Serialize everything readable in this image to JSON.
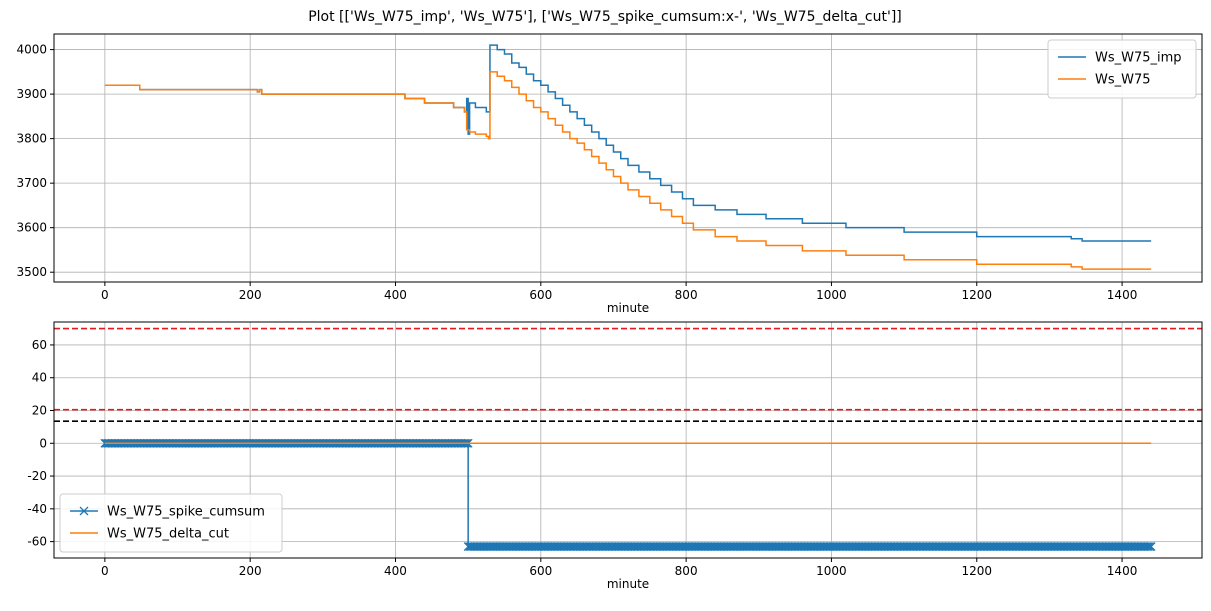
{
  "figure": {
    "title": "Plot [['Ws_W75_imp', 'Ws_W75'], ['Ws_W75_spike_cumsum:x-', 'Ws_W75_delta_cut']]"
  },
  "colors": {
    "blue": "#1f77b4",
    "orange": "#ff7f0e",
    "red": "#e41a1c",
    "black": "#000000",
    "grid": "#b0b0b0"
  },
  "chart_data": [
    {
      "type": "line",
      "xlabel": "minute",
      "ylabel": "",
      "xlim": [
        -70,
        1510
      ],
      "ylim": [
        3478,
        4035
      ],
      "xticks": [
        0,
        200,
        400,
        600,
        800,
        1000,
        1200,
        1400
      ],
      "yticks": [
        3500,
        3600,
        3700,
        3800,
        3900,
        4000
      ],
      "grid": true,
      "legend_position": "upper right",
      "series": [
        {
          "name": "Ws_W75_imp",
          "color": "blue",
          "style": "step",
          "points": [
            [
              0,
              3920
            ],
            [
              48,
              3910
            ],
            [
              205,
              3910
            ],
            [
              210,
              3905
            ],
            [
              213,
              3910
            ],
            [
              216,
              3900
            ],
            [
              410,
              3900
            ],
            [
              413,
              3890
            ],
            [
              440,
              3880
            ],
            [
              480,
              3870
            ],
            [
              495,
              3860
            ],
            [
              498,
              3890
            ],
            [
              500,
              3810
            ],
            [
              502,
              3880
            ],
            [
              510,
              3870
            ],
            [
              525,
              3860
            ],
            [
              530,
              4010
            ],
            [
              540,
              4000
            ],
            [
              550,
              3990
            ],
            [
              560,
              3970
            ],
            [
              570,
              3960
            ],
            [
              580,
              3945
            ],
            [
              590,
              3930
            ],
            [
              600,
              3920
            ],
            [
              610,
              3905
            ],
            [
              620,
              3890
            ],
            [
              630,
              3875
            ],
            [
              640,
              3860
            ],
            [
              650,
              3845
            ],
            [
              660,
              3830
            ],
            [
              670,
              3815
            ],
            [
              680,
              3800
            ],
            [
              690,
              3785
            ],
            [
              700,
              3770
            ],
            [
              710,
              3755
            ],
            [
              720,
              3740
            ],
            [
              735,
              3725
            ],
            [
              750,
              3710
            ],
            [
              765,
              3695
            ],
            [
              780,
              3680
            ],
            [
              795,
              3665
            ],
            [
              810,
              3650
            ],
            [
              840,
              3640
            ],
            [
              870,
              3630
            ],
            [
              910,
              3620
            ],
            [
              960,
              3610
            ],
            [
              1020,
              3600
            ],
            [
              1100,
              3590
            ],
            [
              1200,
              3580
            ],
            [
              1330,
              3575
            ],
            [
              1345,
              3570
            ],
            [
              1440,
              3570
            ]
          ]
        },
        {
          "name": "Ws_W75",
          "color": "orange",
          "style": "step",
          "points": [
            [
              0,
              3920
            ],
            [
              48,
              3910
            ],
            [
              205,
              3910
            ],
            [
              210,
              3905
            ],
            [
              213,
              3910
            ],
            [
              216,
              3900
            ],
            [
              410,
              3900
            ],
            [
              413,
              3890
            ],
            [
              440,
              3880
            ],
            [
              480,
              3870
            ],
            [
              495,
              3860
            ],
            [
              498,
              3820
            ],
            [
              502,
              3815
            ],
            [
              510,
              3810
            ],
            [
              525,
              3805
            ],
            [
              528,
              3800
            ],
            [
              530,
              3950
            ],
            [
              540,
              3940
            ],
            [
              550,
              3930
            ],
            [
              560,
              3915
            ],
            [
              570,
              3900
            ],
            [
              580,
              3885
            ],
            [
              590,
              3870
            ],
            [
              600,
              3860
            ],
            [
              610,
              3845
            ],
            [
              620,
              3830
            ],
            [
              630,
              3815
            ],
            [
              640,
              3800
            ],
            [
              650,
              3790
            ],
            [
              660,
              3775
            ],
            [
              670,
              3760
            ],
            [
              680,
              3745
            ],
            [
              690,
              3730
            ],
            [
              700,
              3715
            ],
            [
              710,
              3700
            ],
            [
              720,
              3685
            ],
            [
              735,
              3670
            ],
            [
              750,
              3655
            ],
            [
              765,
              3640
            ],
            [
              780,
              3625
            ],
            [
              795,
              3610
            ],
            [
              810,
              3595
            ],
            [
              840,
              3580
            ],
            [
              870,
              3570
            ],
            [
              910,
              3560
            ],
            [
              960,
              3548
            ],
            [
              1020,
              3538
            ],
            [
              1100,
              3528
            ],
            [
              1200,
              3518
            ],
            [
              1330,
              3512
            ],
            [
              1345,
              3507
            ],
            [
              1440,
              3507
            ]
          ]
        }
      ]
    },
    {
      "type": "line",
      "xlabel": "minute",
      "ylabel": "",
      "xlim": [
        -70,
        1510
      ],
      "ylim": [
        -70,
        74
      ],
      "xticks": [
        0,
        200,
        400,
        600,
        800,
        1000,
        1200,
        1400
      ],
      "yticks": [
        -60,
        -40,
        -20,
        0,
        20,
        40,
        60
      ],
      "grid": true,
      "legend_position": "lower left",
      "series": [
        {
          "name": "Ws_W75_spike_cumsum",
          "color": "blue",
          "marker": "x",
          "points": [
            [
              0,
              0
            ],
            [
              500,
              0
            ],
            [
              500,
              -63
            ],
            [
              1440,
              -63
            ]
          ]
        },
        {
          "name": "Ws_W75_delta_cut",
          "color": "orange",
          "points": [
            [
              0,
              0
            ],
            [
              1440,
              0
            ]
          ]
        }
      ],
      "hlines": [
        {
          "y": 70,
          "color": "red",
          "style": "dashed"
        },
        {
          "y": 20.5,
          "color": "red",
          "style": "dashed"
        },
        {
          "y": 13.5,
          "color": "black",
          "style": "dashed"
        }
      ]
    }
  ]
}
